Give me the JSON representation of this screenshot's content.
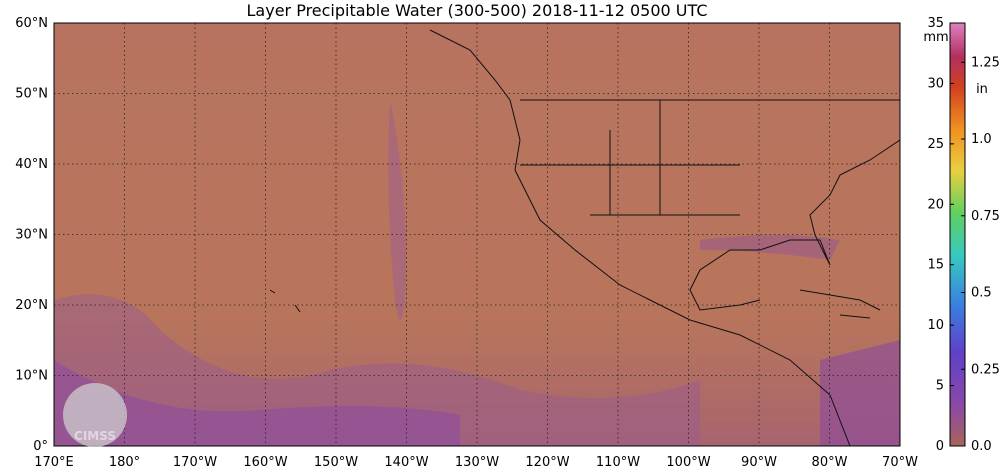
{
  "title": "Layer Precipitable Water (300-500)  2018-11-12 0500 UTC",
  "latitude_labels": [
    "60°N",
    "50°N",
    "40°N",
    "30°N",
    "20°N",
    "10°N",
    "0°"
  ],
  "longitude_labels": [
    "170°E",
    "180°",
    "170°W",
    "160°W",
    "150°W",
    "140°W",
    "130°W",
    "120°W",
    "110°W",
    "100°W",
    "90°W",
    "80°W",
    "70°W"
  ],
  "colorbar": {
    "mm_unit": "mm",
    "in_unit": "in",
    "mm_range": [
      0,
      35
    ],
    "mm_ticks": [
      0,
      5,
      10,
      15,
      20,
      25,
      30,
      35
    ],
    "in_ticks": [
      "0.0",
      "0.25",
      "0.5",
      "0.75",
      "1.0",
      "1.25"
    ]
  },
  "logo": "CIMSS"
}
